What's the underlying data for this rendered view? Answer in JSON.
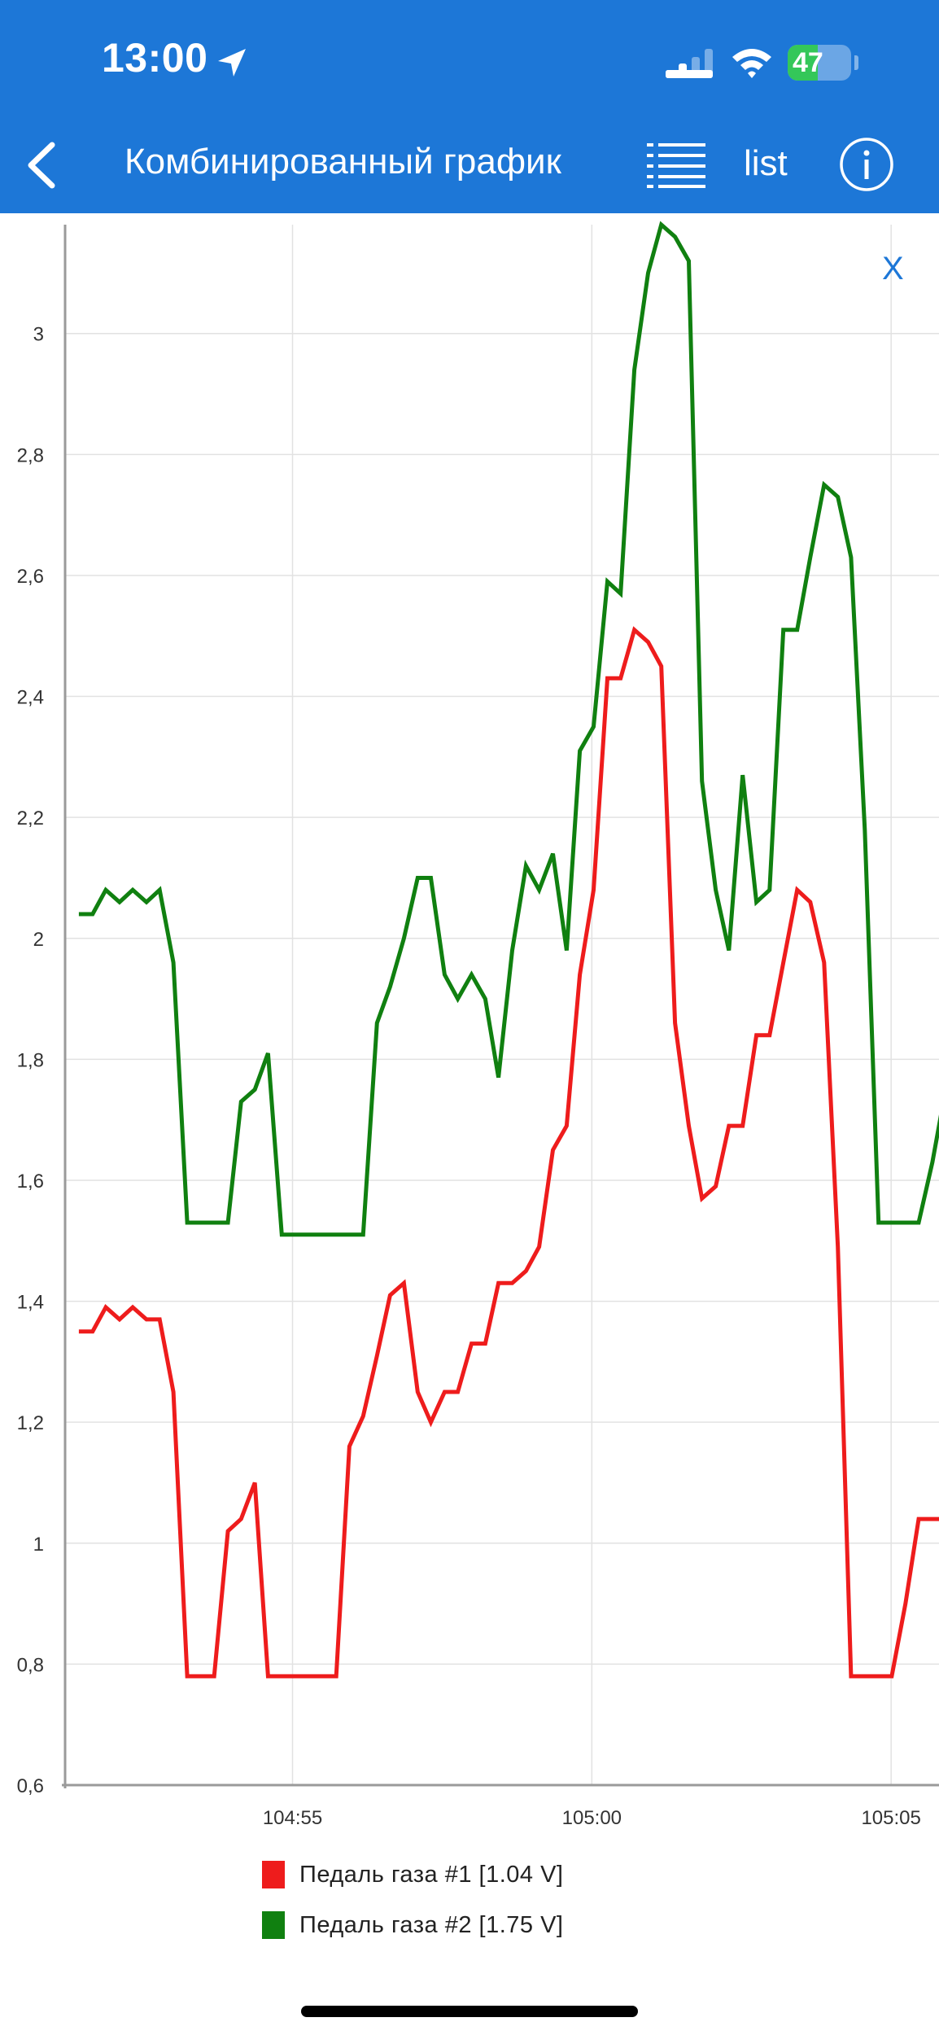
{
  "status_bar": {
    "time": "13:00",
    "battery": "47",
    "battery_fraction": 0.47
  },
  "nav": {
    "title": "Комбинированный график",
    "list_label": "list",
    "back_icon": "chevron-left-icon",
    "list_icon": "list-icon",
    "info_icon": "info-icon"
  },
  "chart": {
    "close_label": "X"
  },
  "colors": {
    "header": "#1d77d7",
    "series1": "#ee1c1c",
    "series2": "#108010",
    "grid": "#e2e2e2",
    "axis": "#9a9a9a"
  },
  "chart_data": {
    "type": "line",
    "title": "",
    "xlabel": "",
    "ylabel": "",
    "x_ticks": [
      "104:55",
      "105:00",
      "105:05"
    ],
    "x_tick_values": [
      295,
      300,
      305
    ],
    "xlim": [
      291.2,
      305.8
    ],
    "ylim": [
      0.6,
      3.18
    ],
    "y_ticks": [
      0.6,
      0.8,
      1.0,
      1.2,
      1.4,
      1.6,
      1.8,
      2.0,
      2.2,
      2.4,
      2.6,
      2.8,
      3.0
    ],
    "y_tick_labels": [
      "0,6",
      "0,8",
      "1",
      "1,2",
      "1,4",
      "1,6",
      "1,8",
      "2",
      "2,2",
      "2,4",
      "2,6",
      "2,8",
      "3"
    ],
    "grid": true,
    "legend_position": "bottom",
    "x": [
      291.43,
      291.66,
      291.88,
      292.11,
      292.33,
      292.56,
      292.78,
      293.01,
      293.24,
      293.46,
      293.69,
      293.92,
      294.14,
      294.37,
      294.59,
      294.82,
      295.05,
      295.27,
      295.5,
      295.73,
      295.95,
      296.18,
      296.41,
      296.63,
      296.86,
      297.09,
      297.31,
      297.54,
      297.76,
      297.99,
      298.22,
      298.44,
      298.67,
      298.9,
      299.12,
      299.35,
      299.58,
      299.8,
      300.03,
      300.26,
      300.48,
      300.71,
      300.94,
      301.16,
      301.39,
      301.62,
      301.84,
      302.07,
      302.29,
      302.52,
      302.75,
      302.97,
      303.2,
      303.43,
      303.65,
      303.88,
      304.11,
      304.33,
      304.56,
      304.79,
      305.01,
      305.24,
      305.46,
      305.69,
      305.91
    ],
    "series": [
      {
        "name": "Педаль газа #1 [1.04 V]",
        "color": "#ee1c1c",
        "values": [
          1.35,
          1.35,
          1.39,
          1.37,
          1.39,
          1.37,
          1.37,
          1.25,
          0.78,
          0.78,
          0.78,
          1.02,
          1.04,
          1.1,
          0.78,
          0.78,
          0.78,
          0.78,
          0.78,
          0.78,
          1.16,
          1.21,
          1.31,
          1.41,
          1.43,
          1.25,
          1.2,
          1.25,
          1.25,
          1.33,
          1.33,
          1.43,
          1.43,
          1.45,
          1.49,
          1.65,
          1.69,
          1.94,
          2.08,
          2.43,
          2.43,
          2.51,
          2.49,
          2.45,
          1.86,
          1.69,
          1.57,
          1.59,
          1.69,
          1.69,
          1.84,
          1.84,
          1.96,
          2.08,
          2.06,
          1.96,
          1.49,
          0.78,
          0.78,
          0.78,
          0.78,
          0.9,
          1.04,
          1.04,
          1.04
        ]
      },
      {
        "name": "Педаль газа #2 [1.75 V]",
        "color": "#108010",
        "values": [
          2.04,
          2.04,
          2.08,
          2.06,
          2.08,
          2.06,
          2.08,
          1.96,
          1.53,
          1.53,
          1.53,
          1.53,
          1.73,
          1.75,
          1.81,
          1.51,
          1.51,
          1.51,
          1.51,
          1.51,
          1.51,
          1.51,
          1.86,
          1.92,
          2.0,
          2.1,
          2.1,
          1.94,
          1.9,
          1.94,
          1.9,
          1.77,
          1.98,
          2.12,
          2.08,
          2.14,
          1.98,
          2.31,
          2.35,
          2.59,
          2.57,
          2.94,
          3.1,
          3.18,
          3.16,
          3.12,
          2.26,
          2.08,
          1.98,
          2.27,
          2.06,
          2.08,
          2.51,
          2.51,
          2.63,
          2.75,
          2.73,
          2.63,
          2.18,
          1.53,
          1.53,
          1.53,
          1.53,
          1.63,
          1.75
        ]
      }
    ]
  }
}
